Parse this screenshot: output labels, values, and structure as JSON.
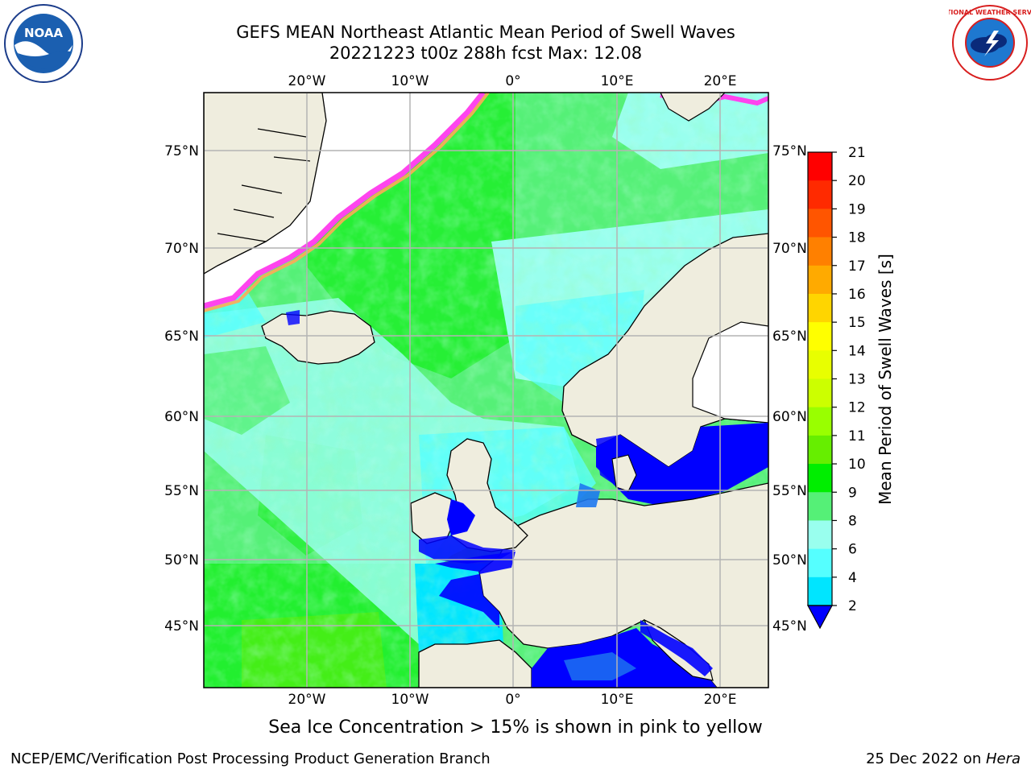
{
  "title": {
    "line1": "GEFS MEAN Northeast Atlantic Mean Period of Swell Waves",
    "line2": "20221223 t00z 288h fcst   Max: 12.08"
  },
  "logos": {
    "left": "noaa-logo",
    "right": "national-weather-service-logo",
    "left_text": "NOAA",
    "right_text": "NATIONAL WEATHER SERVICE"
  },
  "map": {
    "lon_labels": [
      "20°W",
      "10°W",
      "0°",
      "10°E",
      "20°E"
    ],
    "lat_labels": [
      "75°N",
      "70°N",
      "65°N",
      "60°N",
      "55°N",
      "50°N",
      "45°N"
    ],
    "colors": {
      "land": "#efedde",
      "ice_free_white": "#ffffff",
      "grid": "#b4b4b4"
    }
  },
  "colorbar": {
    "label": "Mean Period of Swell Waves [s]",
    "ticks": [
      "21",
      "20",
      "19",
      "18",
      "17",
      "16",
      "15",
      "14",
      "13",
      "12",
      "11",
      "10",
      "9",
      "8",
      "6",
      "4",
      "2"
    ],
    "colors": [
      "#ff0000",
      "#ff2a00",
      "#ff5500",
      "#ff8000",
      "#ffaa00",
      "#ffd500",
      "#ffff00",
      "#e8ff00",
      "#ccff00",
      "#99ff00",
      "#66ee00",
      "#00ee00",
      "#55f077",
      "#99ffee",
      "#55ffff",
      "#00e5ff",
      "#0088ff",
      "#0000ff"
    ]
  },
  "notes": {
    "ice": "Sea Ice Concentration > 15% is shown in pink to yellow",
    "credit": "NCEP/EMC/Verification Post Processing Product Generation Branch",
    "date": "25 Dec 2022 on ",
    "machine": "Hera"
  }
}
